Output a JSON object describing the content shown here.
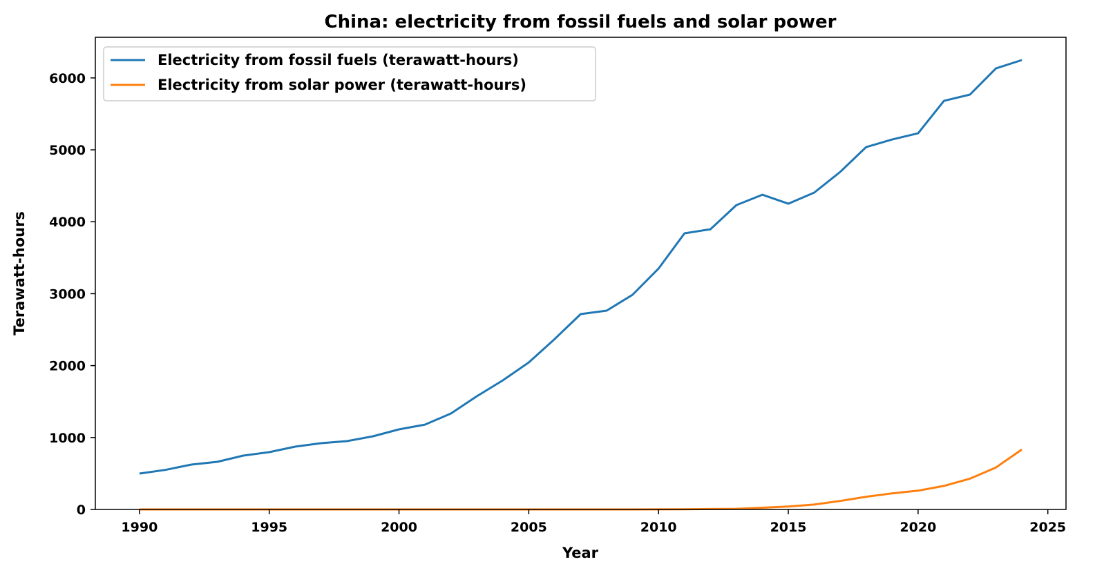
{
  "chart_data": {
    "type": "line",
    "title": "China: electricity from fossil fuels and solar power",
    "xlabel": "Year",
    "ylabel": "Terawatt-hours",
    "xlim": [
      1988.3,
      2025.7
    ],
    "ylim": [
      0,
      6565
    ],
    "xticks": [
      1990,
      1995,
      2000,
      2005,
      2010,
      2015,
      2020,
      2025
    ],
    "yticks": [
      0,
      1000,
      2000,
      3000,
      4000,
      5000,
      6000
    ],
    "grid": false,
    "legend_position": "top-left",
    "x": [
      1990,
      1991,
      1992,
      1993,
      1994,
      1995,
      1996,
      1997,
      1998,
      1999,
      2000,
      2001,
      2002,
      2003,
      2004,
      2005,
      2006,
      2007,
      2008,
      2009,
      2010,
      2011,
      2012,
      2013,
      2014,
      2015,
      2016,
      2017,
      2018,
      2019,
      2020,
      2021,
      2022,
      2023,
      2024
    ],
    "series": [
      {
        "name": "Electricity from fossil fuels (terawatt-hours)",
        "color": "#1f77b4",
        "values": [
          499,
          550,
          624,
          662,
          749,
          797,
          873,
          921,
          950,
          1017,
          1113,
          1180,
          1334,
          1574,
          1795,
          2044,
          2370,
          2716,
          2764,
          2985,
          3349,
          3839,
          3896,
          4232,
          4376,
          4251,
          4405,
          4693,
          5038,
          5144,
          5230,
          5681,
          5768,
          6132,
          6248
        ]
      },
      {
        "name": "Electricity from solar power (terawatt-hours)",
        "color": "#ff7f0e",
        "values": [
          0,
          0,
          0,
          0,
          0,
          0,
          0,
          0,
          0,
          0,
          0,
          0,
          0,
          0,
          0,
          0,
          0,
          0,
          0,
          0,
          1,
          3,
          6,
          9,
          24,
          40,
          68,
          118,
          177,
          224,
          261,
          327,
          428,
          584,
          834
        ]
      }
    ]
  }
}
